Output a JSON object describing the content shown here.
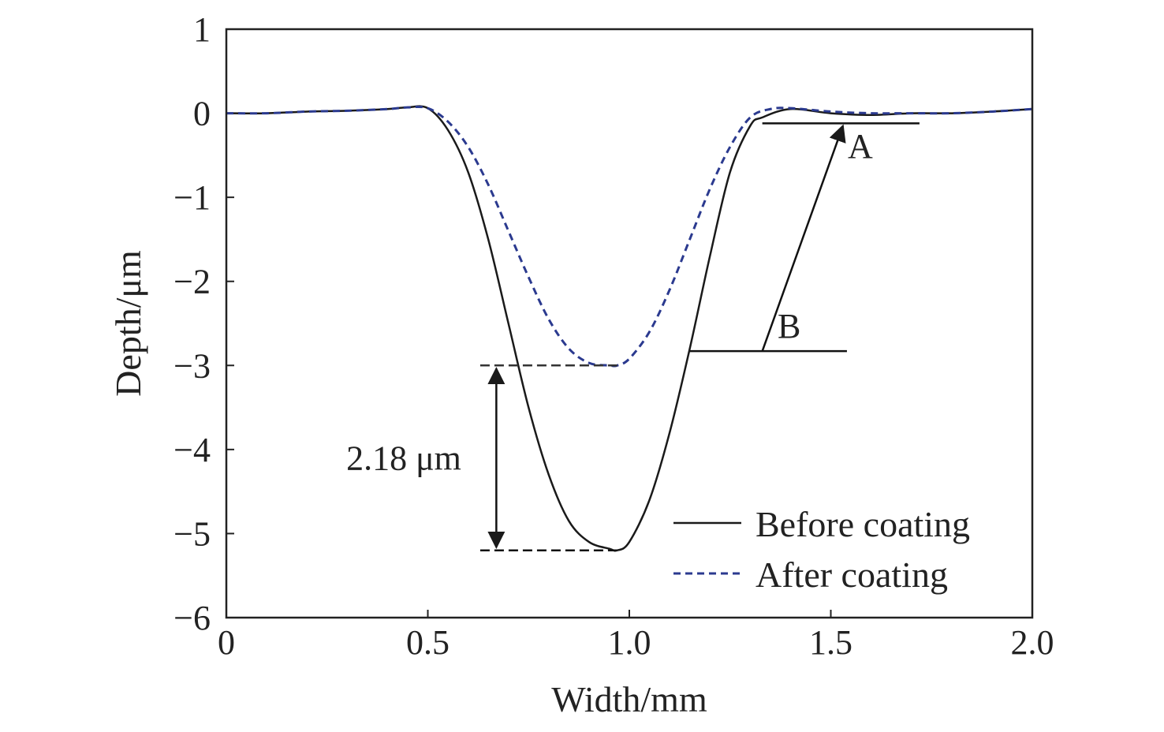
{
  "chart_data": {
    "type": "line",
    "title": "",
    "xlabel": "Width/mm",
    "ylabel": "Depth/μm",
    "xlim": [
      0,
      2.0
    ],
    "ylim": [
      -6,
      1
    ],
    "xticks": [
      "0",
      "0.5",
      "1.0",
      "1.5",
      "2.0"
    ],
    "yticks": [
      "1",
      "0",
      "−1",
      "−2",
      "−3",
      "−4",
      "−5",
      "−6"
    ],
    "grid": false,
    "legend_position": "bottom-right",
    "series": [
      {
        "name": "Before coating",
        "color": "#1a1a1a",
        "style": "solid",
        "x": [
          0,
          0.1,
          0.2,
          0.3,
          0.4,
          0.45,
          0.5,
          0.55,
          0.6,
          0.65,
          0.7,
          0.75,
          0.8,
          0.85,
          0.9,
          0.95,
          0.97,
          1.0,
          1.05,
          1.1,
          1.15,
          1.2,
          1.25,
          1.3,
          1.33,
          1.4,
          1.5,
          1.6,
          1.7,
          1.8,
          1.9,
          2.0
        ],
        "y": [
          0.0,
          0.0,
          0.02,
          0.03,
          0.05,
          0.07,
          0.06,
          -0.2,
          -0.7,
          -1.5,
          -2.5,
          -3.5,
          -4.3,
          -4.85,
          -5.1,
          -5.18,
          -5.2,
          -5.1,
          -4.6,
          -3.8,
          -2.8,
          -1.7,
          -0.7,
          -0.15,
          -0.05,
          0.05,
          0.0,
          -0.02,
          0.0,
          0.0,
          0.02,
          0.05
        ]
      },
      {
        "name": "After coating",
        "color": "#2b3a8f",
        "style": "dashed",
        "x": [
          0,
          0.1,
          0.2,
          0.3,
          0.4,
          0.45,
          0.5,
          0.55,
          0.6,
          0.65,
          0.7,
          0.75,
          0.8,
          0.85,
          0.9,
          0.95,
          0.97,
          1.0,
          1.05,
          1.1,
          1.15,
          1.2,
          1.25,
          1.3,
          1.35,
          1.4,
          1.5,
          1.6,
          1.7,
          1.8,
          1.9,
          2.0
        ],
        "y": [
          0.0,
          0.0,
          0.02,
          0.03,
          0.05,
          0.07,
          0.06,
          -0.1,
          -0.4,
          -0.85,
          -1.4,
          -1.95,
          -2.45,
          -2.8,
          -2.97,
          -3.0,
          -3.0,
          -2.92,
          -2.6,
          -2.1,
          -1.5,
          -0.9,
          -0.4,
          -0.05,
          0.05,
          0.06,
          0.02,
          0.0,
          0.0,
          0.0,
          0.02,
          0.05
        ]
      }
    ],
    "annotations": {
      "depth_difference_label": "2.18 μm",
      "depth_upper": -3.0,
      "depth_lower": -5.2,
      "depth_x_from": 0.63,
      "depth_x_to": 0.97,
      "depth_arrow_x": 0.67,
      "label_a": "A",
      "label_b": "B",
      "line_a": {
        "x1": 1.33,
        "x2": 1.72,
        "y": -0.12
      },
      "line_b": {
        "x1": 1.15,
        "x2": 1.54,
        "y": -2.83
      },
      "arrow_ab": {
        "x1": 1.33,
        "y1": -2.83,
        "x2": 1.53,
        "y2": -0.15
      }
    }
  }
}
